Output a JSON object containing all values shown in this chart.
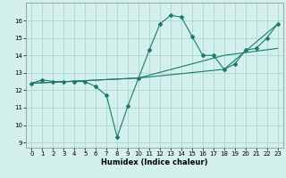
{
  "title": "",
  "xlabel": "Humidex (Indice chaleur)",
  "bg_color": "#d4f0ec",
  "grid_color": "#a8d8d0",
  "line_color": "#1a7a6e",
  "xlim": [
    -0.5,
    23.5
  ],
  "ylim": [
    8.7,
    17.0
  ],
  "yticks": [
    9,
    10,
    11,
    12,
    13,
    14,
    15,
    16
  ],
  "xticks": [
    0,
    1,
    2,
    3,
    4,
    5,
    6,
    7,
    8,
    9,
    10,
    11,
    12,
    13,
    14,
    15,
    16,
    17,
    18,
    19,
    20,
    21,
    22,
    23
  ],
  "series1_x": [
    0,
    1,
    2,
    3,
    4,
    5,
    6,
    7,
    8,
    9,
    10,
    11,
    12,
    13,
    14,
    15,
    16,
    17,
    18,
    19,
    20,
    21,
    22,
    23
  ],
  "series1_y": [
    12.4,
    12.6,
    12.5,
    12.5,
    12.5,
    12.5,
    12.2,
    11.7,
    9.3,
    11.1,
    12.7,
    14.3,
    15.8,
    16.3,
    16.2,
    15.1,
    14.0,
    14.0,
    13.2,
    13.5,
    14.3,
    14.4,
    15.0,
    15.8
  ],
  "series2_x": [
    0,
    10,
    18,
    23
  ],
  "series2_y": [
    12.4,
    12.7,
    13.2,
    15.8
  ],
  "series3_x": [
    0,
    10,
    18,
    23
  ],
  "series3_y": [
    12.4,
    12.7,
    14.0,
    14.4
  ],
  "tick_fontsize": 5.0,
  "xlabel_fontsize": 6.0,
  "marker_size": 2.0,
  "linewidth": 0.8
}
